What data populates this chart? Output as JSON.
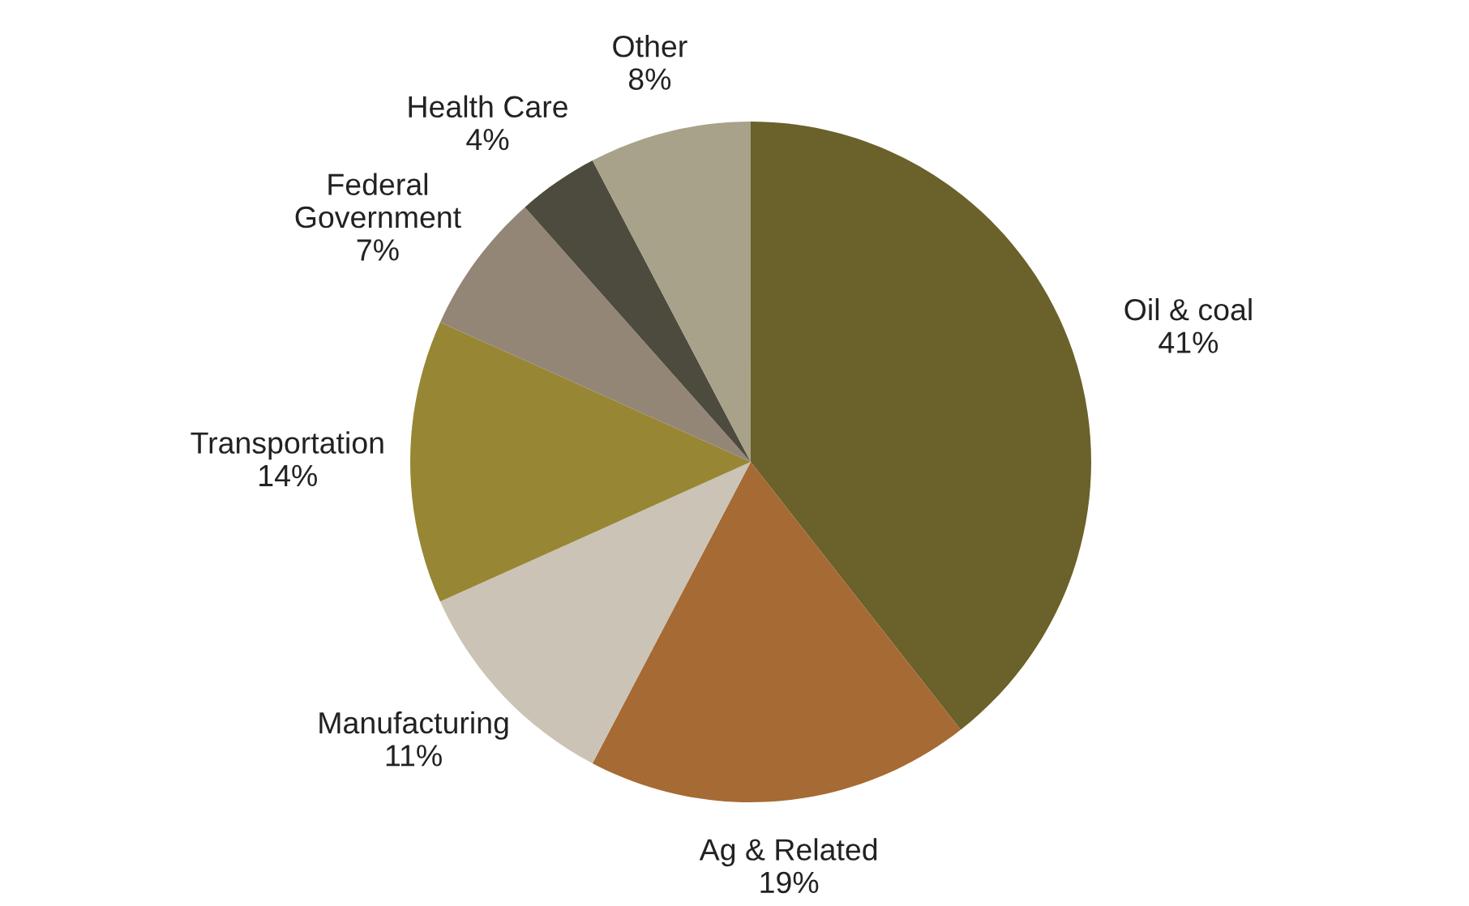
{
  "chart_data": {
    "type": "pie",
    "categories": [
      "Oil & coal",
      "Ag & Related",
      "Manufacturing",
      "Transportation",
      "Federal\nGovernment",
      "Health Care",
      "Other"
    ],
    "values": [
      41,
      19,
      11,
      14,
      7,
      4,
      8
    ],
    "value_labels": [
      "41%",
      "19%",
      "11%",
      "14%",
      "7%",
      "4%",
      "8%"
    ],
    "colors": [
      "#6b612a",
      "#a66a34",
      "#cbc3b5",
      "#978634",
      "#948676",
      "#4d4a3e",
      "#a8a28a"
    ]
  }
}
